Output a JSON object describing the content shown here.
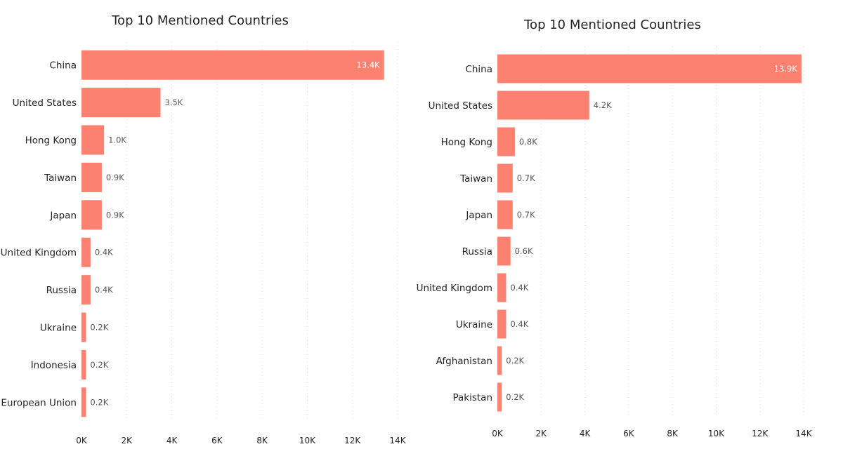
{
  "chart_data": [
    {
      "type": "bar",
      "orientation": "horizontal",
      "title": "Top 10 Mentioned Countries",
      "categories": [
        "China",
        "United States",
        "Hong Kong",
        "Taiwan",
        "Japan",
        "United Kingdom",
        "Russia",
        "Ukraine",
        "Indonesia",
        "European Union"
      ],
      "values": [
        13400,
        3500,
        1000,
        900,
        900,
        400,
        400,
        200,
        200,
        200
      ],
      "data_labels": [
        "13.4K",
        "3.5K",
        "1.0K",
        "0.9K",
        "0.9K",
        "0.4K",
        "0.4K",
        "0.2K",
        "0.2K",
        "0.2K"
      ],
      "xlim": [
        0,
        14000
      ],
      "xticks": [
        "0K",
        "2K",
        "4K",
        "6K",
        "8K",
        "10K",
        "12K",
        "14K"
      ],
      "grid": true,
      "bar_color": "#FD8170"
    },
    {
      "type": "bar",
      "orientation": "horizontal",
      "title": "Top 10 Mentioned Countries",
      "categories": [
        "China",
        "United States",
        "Hong Kong",
        "Taiwan",
        "Japan",
        "Russia",
        "United Kingdom",
        "Ukraine",
        "Afghanistan",
        "Pakistan"
      ],
      "values": [
        13900,
        4200,
        800,
        700,
        700,
        600,
        400,
        400,
        200,
        200
      ],
      "data_labels": [
        "13.9K",
        "4.2K",
        "0.8K",
        "0.7K",
        "0.7K",
        "0.6K",
        "0.4K",
        "0.4K",
        "0.2K",
        "0.2K"
      ],
      "xlim": [
        0,
        14000
      ],
      "xticks": [
        "0K",
        "2K",
        "4K",
        "6K",
        "8K",
        "10K",
        "12K",
        "14K"
      ],
      "grid": true,
      "bar_color": "#FD8170"
    }
  ]
}
